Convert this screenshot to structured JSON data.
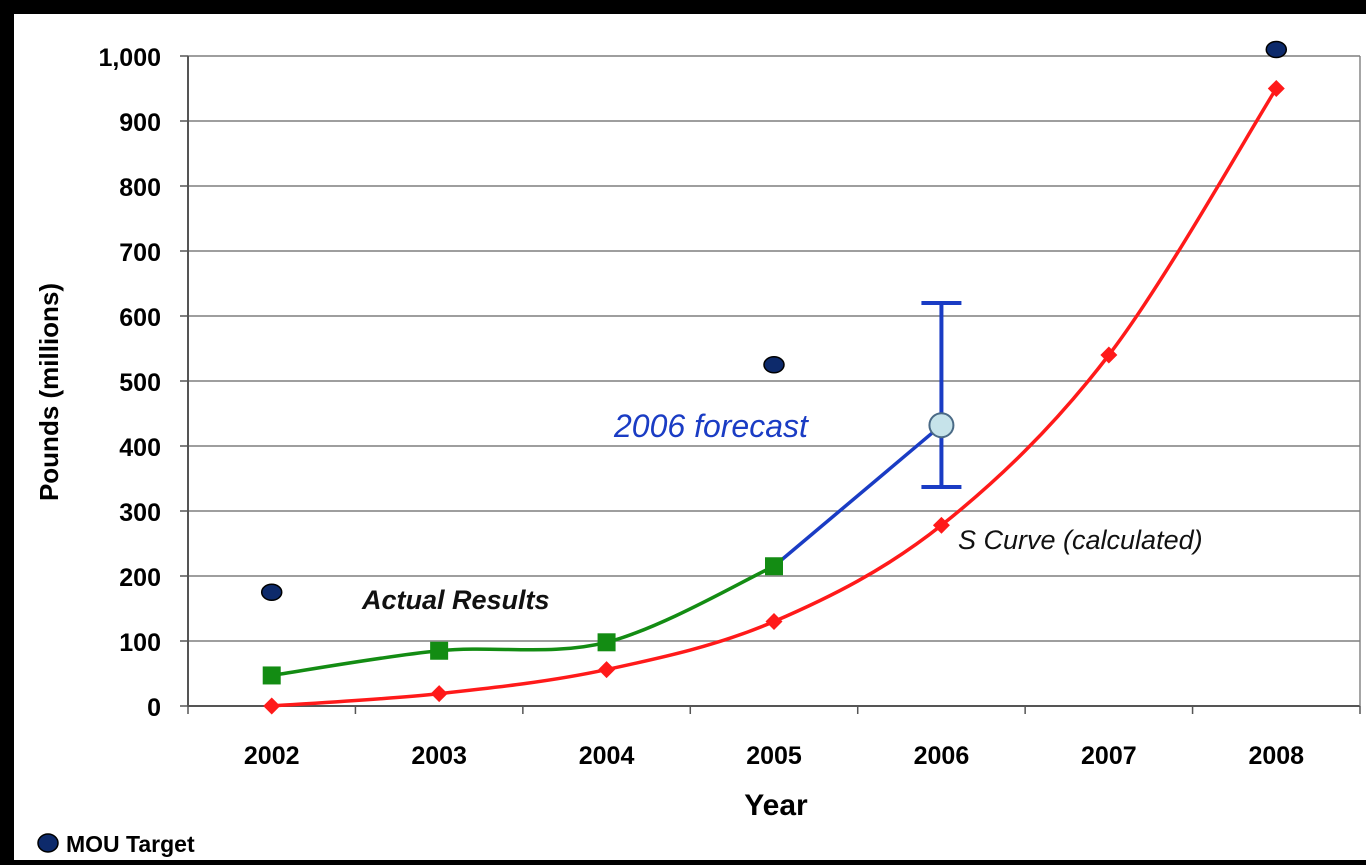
{
  "chart_data": {
    "type": "line",
    "xlabel": "Year",
    "ylabel": "Pounds (millions)",
    "categories": [
      "2002",
      "2003",
      "2004",
      "2005",
      "2006",
      "2007",
      "2008"
    ],
    "ylim": [
      0,
      1000
    ],
    "yticks": [
      {
        "value": 0,
        "label": "0"
      },
      {
        "value": 100,
        "label": "100"
      },
      {
        "value": 200,
        "label": "200"
      },
      {
        "value": 300,
        "label": "300"
      },
      {
        "value": 400,
        "label": "400"
      },
      {
        "value": 500,
        "label": "500"
      },
      {
        "value": 600,
        "label": "600"
      },
      {
        "value": 700,
        "label": "700"
      },
      {
        "value": 800,
        "label": "800"
      },
      {
        "value": 900,
        "label": "900"
      },
      {
        "value": 1000,
        "label": "1,000"
      }
    ],
    "grid": true,
    "series": [
      {
        "name": "Actual Results",
        "color": "#138c13",
        "marker": "square",
        "x": [
          "2002",
          "2003",
          "2004",
          "2005"
        ],
        "values": [
          47,
          85,
          98,
          215
        ]
      },
      {
        "name": "S Curve (calculated)",
        "color": "#ff1a1a",
        "marker": "diamond",
        "x": [
          "2002",
          "2003",
          "2004",
          "2005",
          "2006",
          "2007",
          "2008"
        ],
        "values": [
          0,
          19,
          56,
          130,
          278,
          540,
          950
        ]
      },
      {
        "name": "MOU Target",
        "color": "#0d2a6b",
        "marker": "circle",
        "x": [
          "2002",
          "2005",
          "2008"
        ],
        "values": [
          175,
          525,
          1010
        ]
      }
    ],
    "forecast": {
      "label": "2006 forecast",
      "color": "#1a3cc4",
      "marker_color": "#c6e3ea",
      "from": {
        "x": "2005",
        "value": 215
      },
      "point": {
        "x": "2006",
        "value": 432
      },
      "error_low": 337,
      "error_high": 620
    },
    "annotations": {
      "actual": "Actual Results",
      "scurve": "S Curve (calculated)",
      "forecast": "2006 forecast"
    },
    "legend": {
      "placement": "bottom-left",
      "items": [
        {
          "label": "MOU Target",
          "color": "#0d2a6b"
        }
      ]
    }
  }
}
